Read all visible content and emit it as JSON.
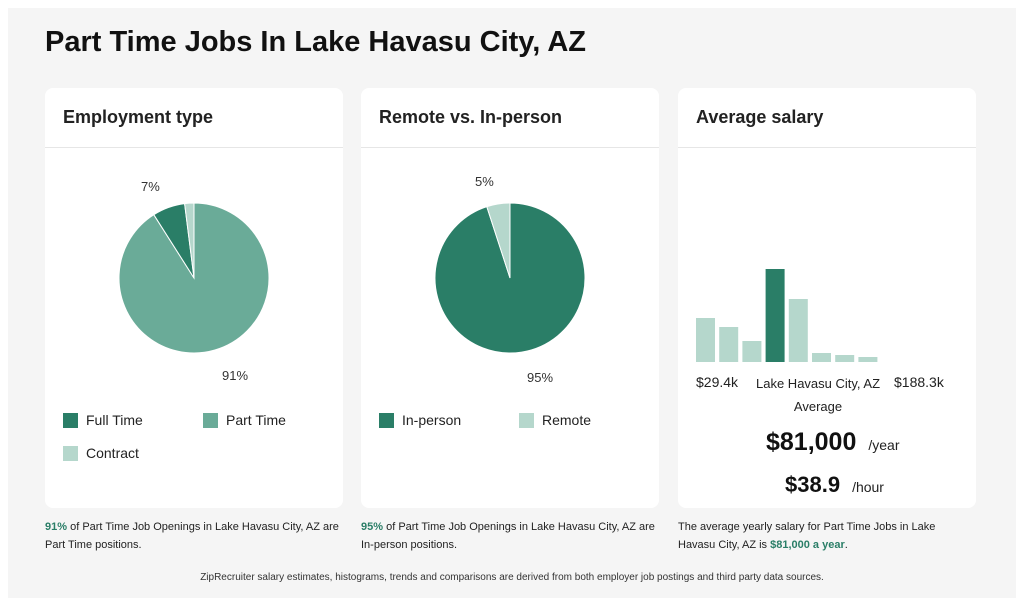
{
  "title": "Part Time Jobs In Lake Havasu City, AZ",
  "colors": {
    "dark": "#2a7e67",
    "mid": "#6aab98",
    "light": "#b5d7cc"
  },
  "chart_data": [
    {
      "type": "pie",
      "title": "Employment type",
      "slices": [
        {
          "name": "Part Time",
          "value": 91,
          "label": "91%",
          "color": "#6aab98"
        },
        {
          "name": "Full Time",
          "value": 7,
          "label": "7%",
          "color": "#2a7e67"
        },
        {
          "name": "Contract",
          "value": 2,
          "label": "",
          "color": "#b5d7cc"
        }
      ],
      "legend": [
        "Full Time",
        "Part Time",
        "Contract"
      ]
    },
    {
      "type": "pie",
      "title": "Remote vs. In-person",
      "slices": [
        {
          "name": "In-person",
          "value": 95,
          "label": "95%",
          "color": "#2a7e67"
        },
        {
          "name": "Remote",
          "value": 5,
          "label": "5%",
          "color": "#b5d7cc"
        }
      ],
      "legend": [
        "In-person",
        "Remote"
      ]
    },
    {
      "type": "bar",
      "title": "Average salary",
      "values": [
        44,
        35,
        21,
        93,
        63,
        9,
        7,
        5
      ],
      "highlight_index": 3,
      "min_label": "$29.4k",
      "max_label": "$188.3k",
      "center_label": "Lake Havasu City, AZ",
      "sub_label": "Average"
    }
  ],
  "salary": {
    "yearly": "$81,000",
    "yearly_unit": "/year",
    "hourly": "$38.9",
    "hourly_unit": "/hour"
  },
  "notes": {
    "emp": {
      "pct": "91%",
      "text": " of Part Time Job Openings in Lake Havasu City, AZ are Part Time positions."
    },
    "remote": {
      "pct": "95%",
      "text": " of Part Time Job Openings in Lake Havasu City, AZ are In-person positions."
    },
    "salary": {
      "text": "The average yearly salary for Part Time Jobs in Lake Havasu City, AZ is ",
      "bold": "$81,000 a year",
      "end": "."
    }
  },
  "footer": "ZipRecruiter salary estimates, histograms, trends and comparisons are derived from both employer job postings and third party data sources."
}
